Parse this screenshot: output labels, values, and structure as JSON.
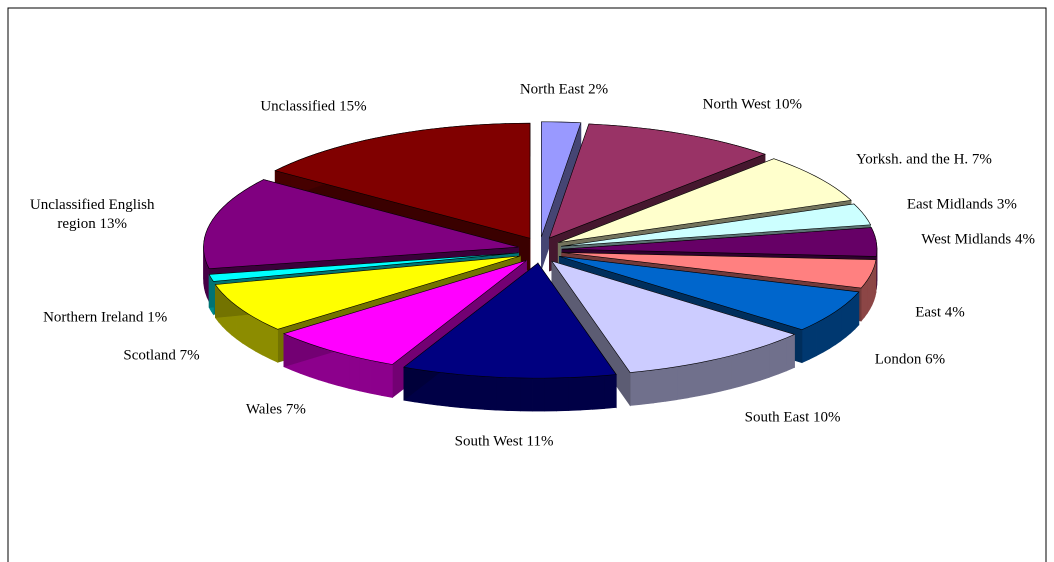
{
  "chart_data": {
    "type": "pie",
    "three_d": true,
    "exploded": true,
    "categories": [
      "North East",
      "North West",
      "Yorksh. and the H.",
      "East Midlands",
      "West Midlands",
      "East",
      "London",
      "South East",
      "South West",
      "Wales",
      "Scotland",
      "Northern Ireland",
      "Unclassified English region",
      "Unclassified"
    ],
    "values": [
      2,
      10,
      7,
      3,
      4,
      4,
      6,
      10,
      11,
      7,
      7,
      1,
      13,
      15
    ],
    "value_labels": [
      "2%",
      "10%",
      "7%",
      "3%",
      "4%",
      "4%",
      "6%",
      "10%",
      "11%",
      "7%",
      "7%",
      "1%",
      "13%",
      "15%"
    ],
    "colors": [
      "#9999ff",
      "#993366",
      "#ffffcc",
      "#ccffff",
      "#660066",
      "#ff8080",
      "#0066cc",
      "#ccccff",
      "#000080",
      "#ff00ff",
      "#ffff00",
      "#00ffff",
      "#800080",
      "#800000"
    ]
  }
}
